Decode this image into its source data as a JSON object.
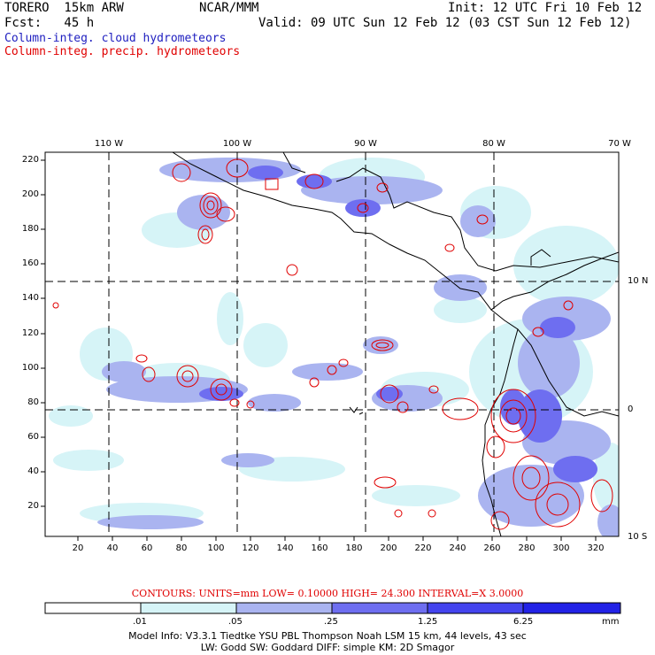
{
  "header": {
    "model": "TORERO  15km ARW",
    "center": "NCAR/MMM",
    "init": "Init: 12 UTC Fri 10 Feb 12",
    "fcst": "Fcst:   45 h",
    "valid": "Valid: 09 UTC Sun 12 Feb 12 (03 CST Sun 12 Feb 12)",
    "field1": "Column-integ. cloud hydrometeors",
    "field2": "Column-integ. precip. hydrometeors",
    "field1_color": "#2020c0",
    "field2_color": "#e00000"
  },
  "map": {
    "lon_ticks": [
      "110 W",
      "100 W",
      "90 W",
      "80 W",
      "70 W"
    ],
    "lat_ticks": [
      "10 N",
      "0",
      "10 S"
    ],
    "y_ticks": [
      "220",
      "200",
      "180",
      "160",
      "140",
      "120",
      "100",
      "80",
      "60",
      "40",
      "20"
    ],
    "x_ticks": [
      "20",
      "40",
      "60",
      "80",
      "100",
      "120",
      "140",
      "160",
      "180",
      "200",
      "220",
      "240",
      "260",
      "280",
      "300",
      "320"
    ]
  },
  "contours": {
    "text": "CONTOURS:  UNITS=mm  LOW= 0.10000      HIGH=  24.300      INTERVAL=X  3.0000"
  },
  "colorbar": {
    "labels": [
      ".01",
      ".05",
      ".25",
      "1.25",
      "6.25"
    ],
    "unit": "mm",
    "colors": [
      "#ffffff",
      "#d6f4f7",
      "#aab4f0",
      "#6e6ef0",
      "#4444ee",
      "#2222e6"
    ]
  },
  "model_info": {
    "line1": "Model Info: V3.3.1    Tiedtke YSU PBL   Thompson     Noah LSM  15 km,   44 levels,    43 sec",
    "line2": "LW: Godd SW: Goddard DIFF: simple KM: 2D Smagor"
  }
}
